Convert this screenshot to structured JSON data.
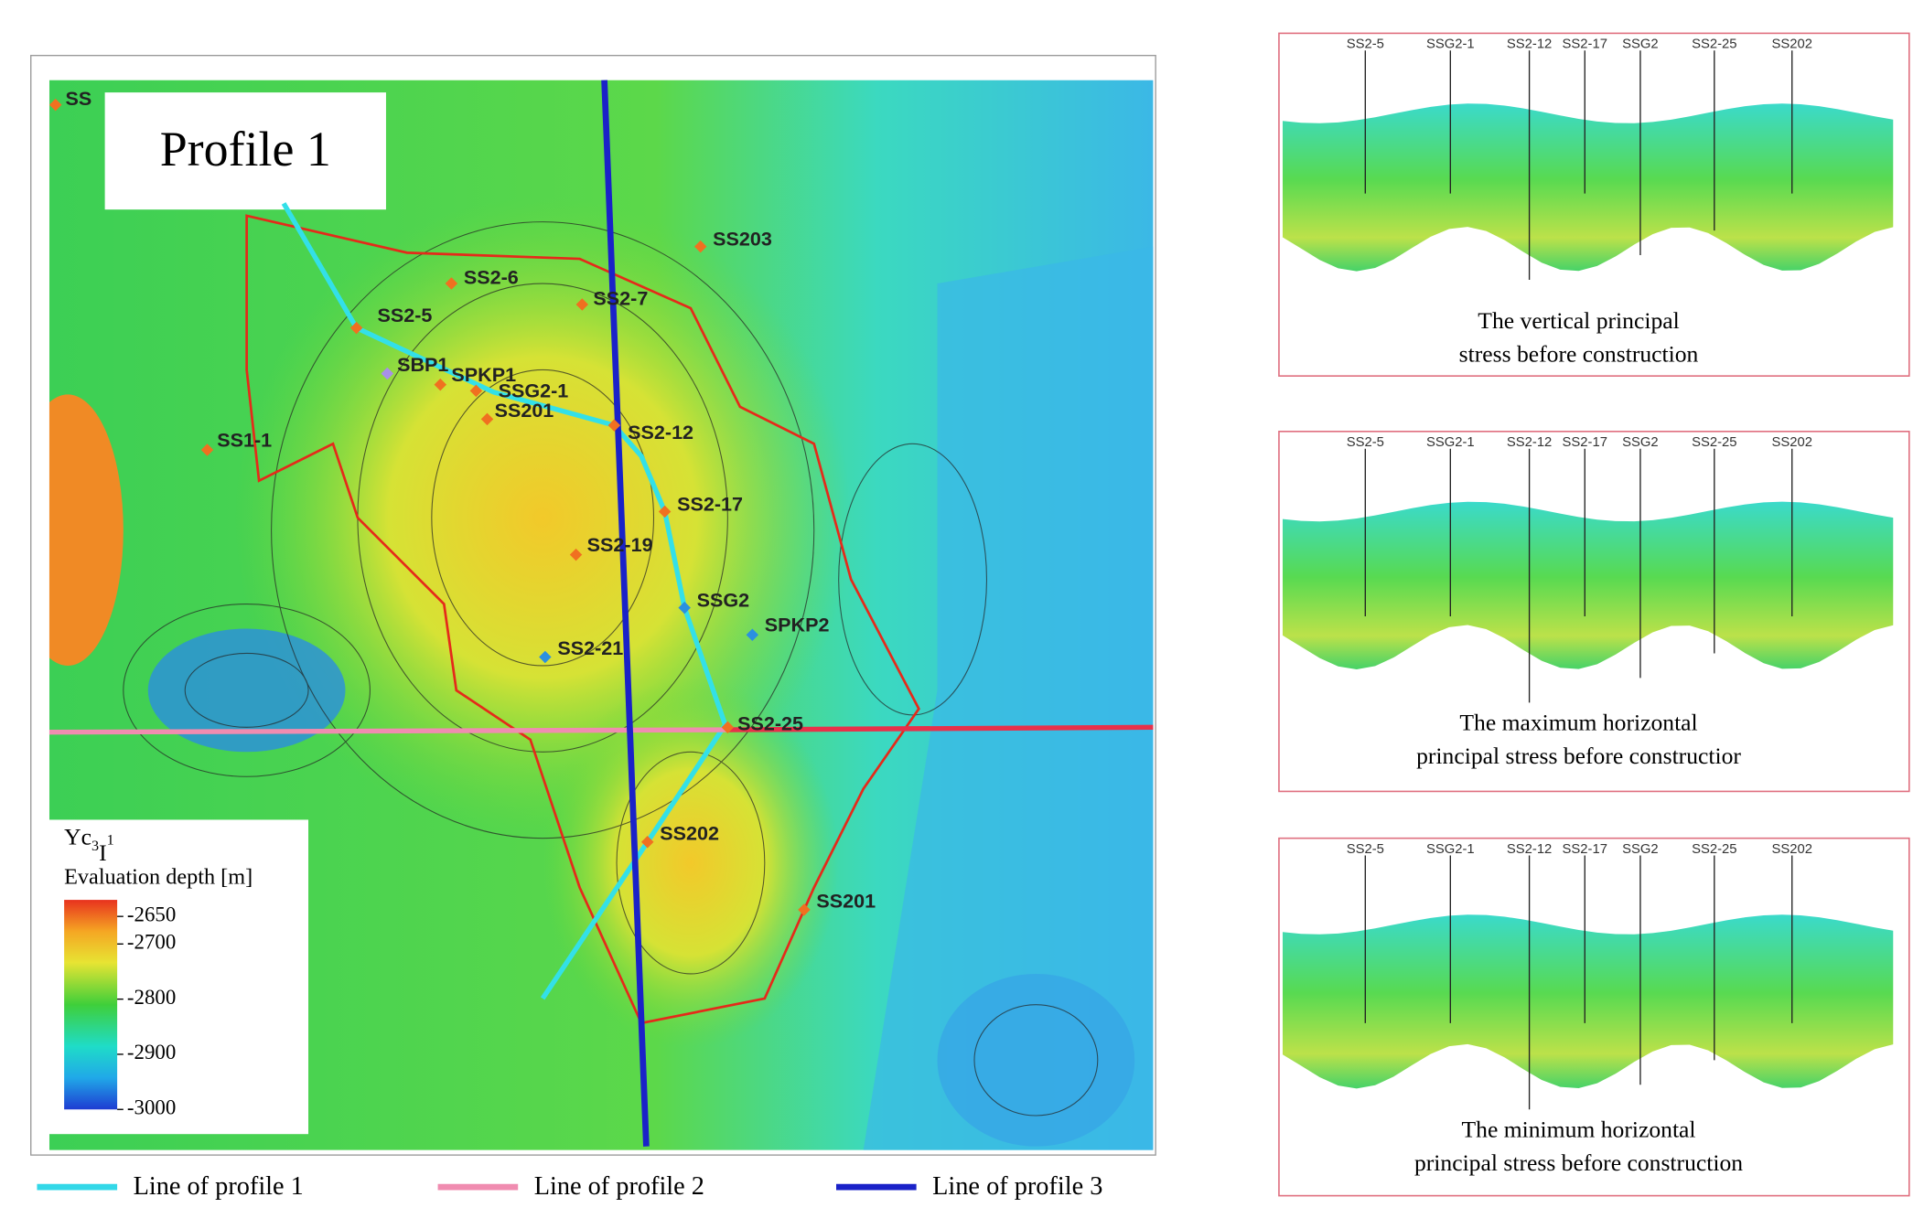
{
  "map": {
    "title": "Profile 1",
    "wells": [
      "SS",
      "SS203",
      "SS2-6",
      "SS2-7",
      "SS2-5",
      "SBP1",
      "SPKP1",
      "SSG2-1",
      "SS201",
      "SS2-12",
      "SS1-1",
      "SS2-17",
      "SS2-19",
      "SSG2",
      "SPKP2",
      "SS2-21",
      "SS2-25",
      "SS202",
      "SS201"
    ],
    "colorbar": {
      "label_parts": [
        "Yc",
        "3",
        "I",
        "1"
      ],
      "title": "Evaluation depth [m]",
      "range": [
        -2620,
        -3000
      ],
      "ticks": [
        -2650,
        -2700,
        -2800,
        -2900,
        -3000
      ]
    },
    "legend": [
      "Line of profile 1",
      "Line of profile 2",
      "Line of profile 3"
    ]
  },
  "panels": [
    {
      "wells": [
        "SS2-5",
        "SSG2-1",
        "SS2-12",
        "SS2-17",
        "SSG2",
        "SS2-25",
        "SS202"
      ],
      "caption": [
        "The vertical principal",
        "stress before construction"
      ]
    },
    {
      "wells": [
        "SS2-5",
        "SSG2-1",
        "SS2-12",
        "SS2-17",
        "SSG2",
        "SS2-25",
        "SS202"
      ],
      "caption": [
        "The maximum horizontal",
        "principal stress before constructior"
      ]
    },
    {
      "wells": [
        "SS2-5",
        "SSG2-1",
        "SS2-12",
        "SS2-17",
        "SSG2",
        "SS2-25",
        "SS202"
      ],
      "caption": [
        "The minimum horizontal",
        "principal stress before construction"
      ]
    }
  ]
}
